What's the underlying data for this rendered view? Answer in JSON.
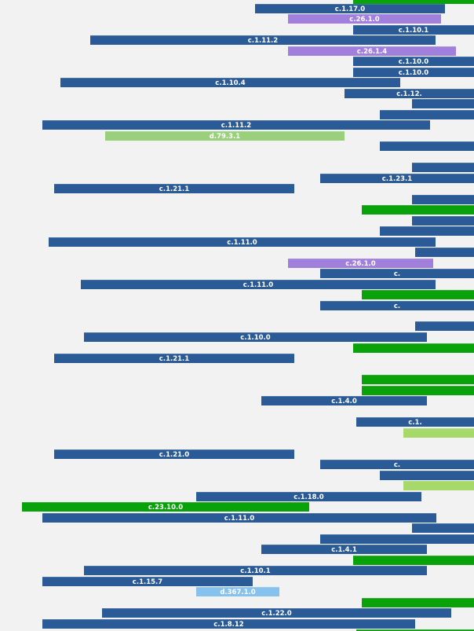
{
  "palette": {
    "c_family": "#2b5b96",
    "c26_family": "#a07fdd",
    "d79_family": "#9ad07c",
    "c23_family": "#0aa20a",
    "green_plain": "#0aa20a",
    "lightgreen_plain": "#a6d96a",
    "d367_family": "#86c2ee",
    "background": "#f2f2f2"
  },
  "labels": [
    "c.1.17.0",
    "c.26.1.0",
    "c.1.10.1",
    "c.1.11.2",
    "c.26.1.4",
    "c.1.10.0",
    "c.1.10.0",
    "c.1.10.4",
    "c.1.12.",
    "c.1.11.2",
    "d.79.3.1",
    "c.1.23.1",
    "c.1.21.1",
    "c.1.11.0",
    "c.26.1.0",
    "c.",
    "c.1.11.0",
    "c.",
    "c.1.10.0",
    "c.1.21.1",
    "c.1.4.0",
    "c.1.",
    "c.1.21.0",
    "c.",
    "c.1.18.0",
    "c.23.10.0",
    "c.1.11.0",
    "c.1.4.1",
    "c.1.10.1",
    "c.1.15.7",
    "d.367.1.0",
    "c.1.22.0",
    "c.1.8.12"
  ]
}
